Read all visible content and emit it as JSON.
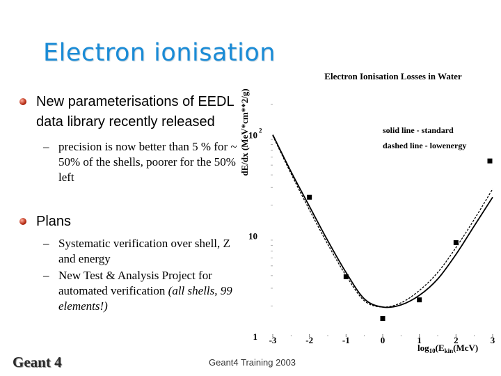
{
  "slide": {
    "title": "Electron ionisation",
    "bullet1": "New parameterisations of EEDL data library recently released",
    "sub1": "precision is now  better than 5 % for ~ 50% of the shells, poorer for the 50% left",
    "bullet2": "Plans",
    "sub2a": "Systematic verification over shell, Z and energy",
    "sub2b": "New Test & Analysis Project for automated verification",
    "sub2b_italic": "(all shells, 99 elements!)",
    "logo": "Geant 4",
    "footer": "Geant4 Training 2003",
    "dash": "–"
  },
  "chart_data": {
    "type": "line",
    "title": "Electron Ionisation Losses in Water",
    "xlabel_main": "log",
    "xlabel_sub": "10",
    "xlabel_paren": "(E",
    "xlabel_sub2": "kin",
    "xlabel_end": "(McV)",
    "ylabel": "dE/dx (MeV*cm**2/g)",
    "yscale": "log",
    "ylim": [
      1,
      200
    ],
    "xlim": [
      -3,
      3
    ],
    "x_ticks": [
      "-3",
      "-2",
      "-1",
      "0",
      "1",
      "2",
      "3"
    ],
    "y_tick_labels": [
      {
        "base": "10",
        "exp": "2",
        "value": 100
      },
      {
        "base": "10",
        "exp": "",
        "value": 10
      },
      {
        "base": "1",
        "exp": "",
        "value": 1
      }
    ],
    "legend_lines": [
      "solid line - standard",
      "dashed line - lowenergy"
    ],
    "legend_position": "top-right",
    "series": [
      {
        "style": "solid",
        "x": [
          -3,
          -2.5,
          -2,
          -1.5,
          -1,
          -0.5,
          0,
          0.5,
          1,
          1.5,
          2,
          2.5,
          3
        ],
        "y": [
          100,
          43,
          19.5,
          8.9,
          4.3,
          2.35,
          1.95,
          2.05,
          2.55,
          3.7,
          6.5,
          12.5,
          24
        ]
      },
      {
        "style": "dashed",
        "x": [
          -3,
          -2.5,
          -2,
          -1.5,
          -1,
          -0.5,
          0,
          0.5,
          1,
          1.5,
          2,
          2.5,
          3
        ],
        "y": [
          98,
          41,
          18,
          8.2,
          4.0,
          2.25,
          1.95,
          2.15,
          2.85,
          4.3,
          7.6,
          14.5,
          29
        ]
      },
      {
        "style": "markers",
        "marker": "square",
        "x": [
          -2,
          -1,
          0,
          1,
          2,
          3
        ],
        "y": [
          24,
          3.9,
          1.5,
          2.3,
          8.5,
          55
        ]
      }
    ]
  }
}
